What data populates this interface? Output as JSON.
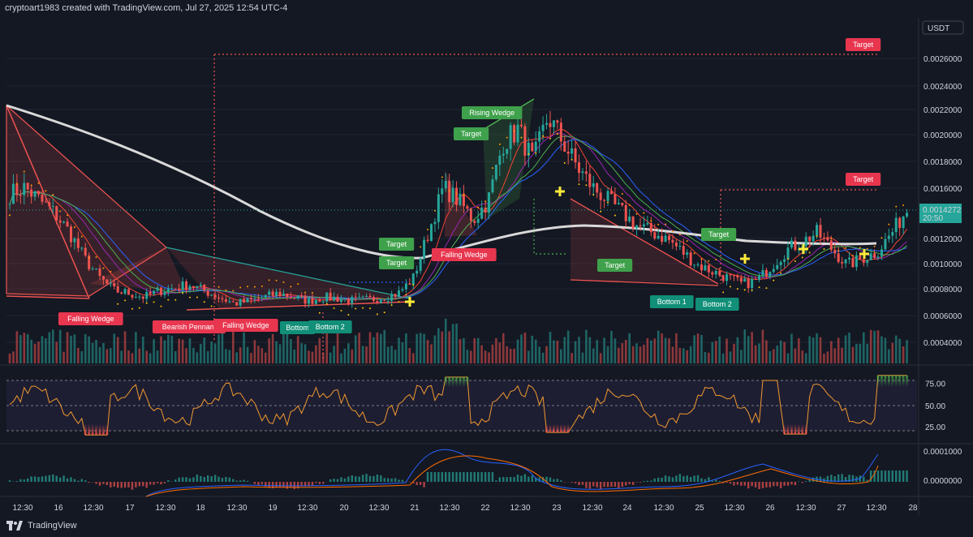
{
  "credit": "cryptoart1983 created with TradingView.com, Jul 27, 2025 12:54 UTC-4",
  "footer_brand": "TradingView",
  "colors": {
    "bg": "#141823",
    "up": "#26a69a",
    "down": "#ef5350",
    "ma_white": "#d9d9d9",
    "red_label": "#e8364f",
    "green_label": "#3fa14b",
    "teal_label": "#118f78",
    "rsi": "#f0992e",
    "macd": "#2962ff",
    "signal": "#ff6d00",
    "grid": "#1f2433"
  },
  "price_axis": {
    "currency": "USDT",
    "ticks": [
      "0.0026000",
      "0.0024000",
      "0.0022000",
      "0.0020000",
      "0.0018000",
      "0.0016000",
      "0.0012000",
      "0.0010000",
      "0.0008000",
      "0.0006000",
      "0.0004000"
    ],
    "current_price": "0.0014272",
    "countdown": "20:50"
  },
  "rsi_axis": {
    "ticks": [
      "75.00",
      "50.00",
      "25.00"
    ]
  },
  "macd_axis": {
    "ticks": [
      "0.0001000",
      "0.0000000"
    ]
  },
  "time_axis": [
    "12:30",
    "16",
    "12:30",
    "17",
    "12:30",
    "18",
    "12:30",
    "19",
    "12:30",
    "20",
    "12:30",
    "21",
    "12:30",
    "22",
    "12:30",
    "23",
    "12:30",
    "24",
    "12:30",
    "25",
    "12:30",
    "26",
    "12:30",
    "27",
    "12:30",
    "28"
  ],
  "pattern_labels": [
    "Falling Wedge",
    "Bearish Pennant",
    "Falling Wedge",
    "Bottom",
    "Bottom 2",
    "Falling Wedge",
    "Target",
    "Target",
    "Rising Wedge",
    "Target",
    "Target",
    "Bottom 1",
    "Bottom 2",
    "Target",
    "Target",
    "Target"
  ],
  "chart_data": {
    "type": "candlestick",
    "symbol_quote": "USDT",
    "price_range": [
      0.0003,
      0.0027
    ],
    "price_series": [
      0.00155,
      0.0016,
      0.0015,
      0.0014,
      0.00125,
      0.00105,
      0.0009,
      0.0008,
      0.00078,
      0.00075,
      0.0008,
      0.00082,
      0.00085,
      0.0008,
      0.00075,
      0.0007,
      0.00072,
      0.00075,
      0.00078,
      0.00075,
      0.00072,
      0.00075,
      0.00074,
      0.00072,
      0.00073,
      0.00075,
      0.00078,
      0.0009,
      0.00125,
      0.0016,
      0.0015,
      0.00135,
      0.0015,
      0.00195,
      0.00205,
      0.0018,
      0.00215,
      0.00195,
      0.00175,
      0.0016,
      0.0015,
      0.0014,
      0.0013,
      0.00125,
      0.0012,
      0.0011,
      0.001,
      0.00095,
      0.0009,
      0.00085,
      0.00088,
      0.001,
      0.00112,
      0.00118,
      0.00125,
      0.00112,
      0.001,
      0.00105,
      0.0011,
      0.00125,
      0.00143
    ]
  }
}
